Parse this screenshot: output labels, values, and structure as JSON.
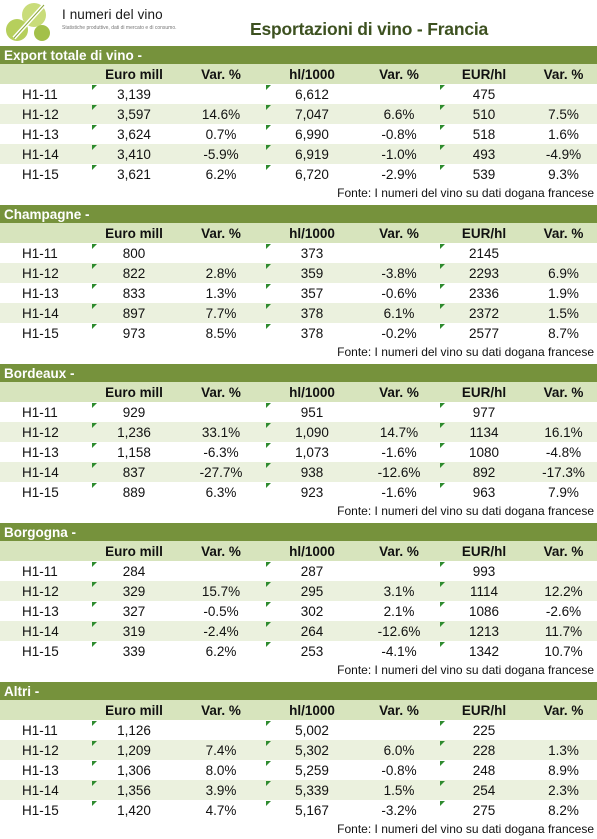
{
  "logo": {
    "name": "I numeri del vino",
    "tagline": "Statistiche produttive, dati di mercato e di consumo."
  },
  "page_title": "Esportazioni di vino - Francia",
  "columns": [
    "",
    "Euro mill",
    "Var. %",
    "hl/1000",
    "Var. %",
    "EUR/hl",
    "Var. %"
  ],
  "source_note": "Fonte: I numeri del vino su dati dogana francese",
  "colors": {
    "section_header": "#76923c",
    "column_header": "#d7e4bd",
    "stripe": "#ebf1de",
    "title": "#3d5120"
  },
  "sections": [
    {
      "title": "Export totale di vino -",
      "rows": [
        [
          "H1-11",
          "3,139",
          "",
          "6,612",
          "",
          "475",
          ""
        ],
        [
          "H1-12",
          "3,597",
          "14.6%",
          "7,047",
          "6.6%",
          "510",
          "7.5%"
        ],
        [
          "H1-13",
          "3,624",
          "0.7%",
          "6,990",
          "-0.8%",
          "518",
          "1.6%"
        ],
        [
          "H1-14",
          "3,410",
          "-5.9%",
          "6,919",
          "-1.0%",
          "493",
          "-4.9%"
        ],
        [
          "H1-15",
          "3,621",
          "6.2%",
          "6,720",
          "-2.9%",
          "539",
          "9.3%"
        ]
      ]
    },
    {
      "title": "Champagne -",
      "rows": [
        [
          "H1-11",
          "800",
          "",
          "373",
          "",
          "2145",
          ""
        ],
        [
          "H1-12",
          "822",
          "2.8%",
          "359",
          "-3.8%",
          "2293",
          "6.9%"
        ],
        [
          "H1-13",
          "833",
          "1.3%",
          "357",
          "-0.6%",
          "2336",
          "1.9%"
        ],
        [
          "H1-14",
          "897",
          "7.7%",
          "378",
          "6.1%",
          "2372",
          "1.5%"
        ],
        [
          "H1-15",
          "973",
          "8.5%",
          "378",
          "-0.2%",
          "2577",
          "8.7%"
        ]
      ]
    },
    {
      "title": "Bordeaux -",
      "rows": [
        [
          "H1-11",
          "929",
          "",
          "951",
          "",
          "977",
          ""
        ],
        [
          "H1-12",
          "1,236",
          "33.1%",
          "1,090",
          "14.7%",
          "1134",
          "16.1%"
        ],
        [
          "H1-13",
          "1,158",
          "-6.3%",
          "1,073",
          "-1.6%",
          "1080",
          "-4.8%"
        ],
        [
          "H1-14",
          "837",
          "-27.7%",
          "938",
          "-12.6%",
          "892",
          "-17.3%"
        ],
        [
          "H1-15",
          "889",
          "6.3%",
          "923",
          "-1.6%",
          "963",
          "7.9%"
        ]
      ]
    },
    {
      "title": "Borgogna -",
      "rows": [
        [
          "H1-11",
          "284",
          "",
          "287",
          "",
          "993",
          ""
        ],
        [
          "H1-12",
          "329",
          "15.7%",
          "295",
          "3.1%",
          "1114",
          "12.2%"
        ],
        [
          "H1-13",
          "327",
          "-0.5%",
          "302",
          "2.1%",
          "1086",
          "-2.6%"
        ],
        [
          "H1-14",
          "319",
          "-2.4%",
          "264",
          "-12.6%",
          "1213",
          "11.7%"
        ],
        [
          "H1-15",
          "339",
          "6.2%",
          "253",
          "-4.1%",
          "1342",
          "10.7%"
        ]
      ]
    },
    {
      "title": "Altri -",
      "rows": [
        [
          "H1-11",
          "1,126",
          "",
          "5,002",
          "",
          "225",
          ""
        ],
        [
          "H1-12",
          "1,209",
          "7.4%",
          "5,302",
          "6.0%",
          "228",
          "1.3%"
        ],
        [
          "H1-13",
          "1,306",
          "8.0%",
          "5,259",
          "-0.8%",
          "248",
          "8.9%"
        ],
        [
          "H1-14",
          "1,356",
          "3.9%",
          "5,339",
          "1.5%",
          "254",
          "2.3%"
        ],
        [
          "H1-15",
          "1,420",
          "4.7%",
          "5,167",
          "-3.2%",
          "275",
          "8.2%"
        ]
      ]
    }
  ]
}
